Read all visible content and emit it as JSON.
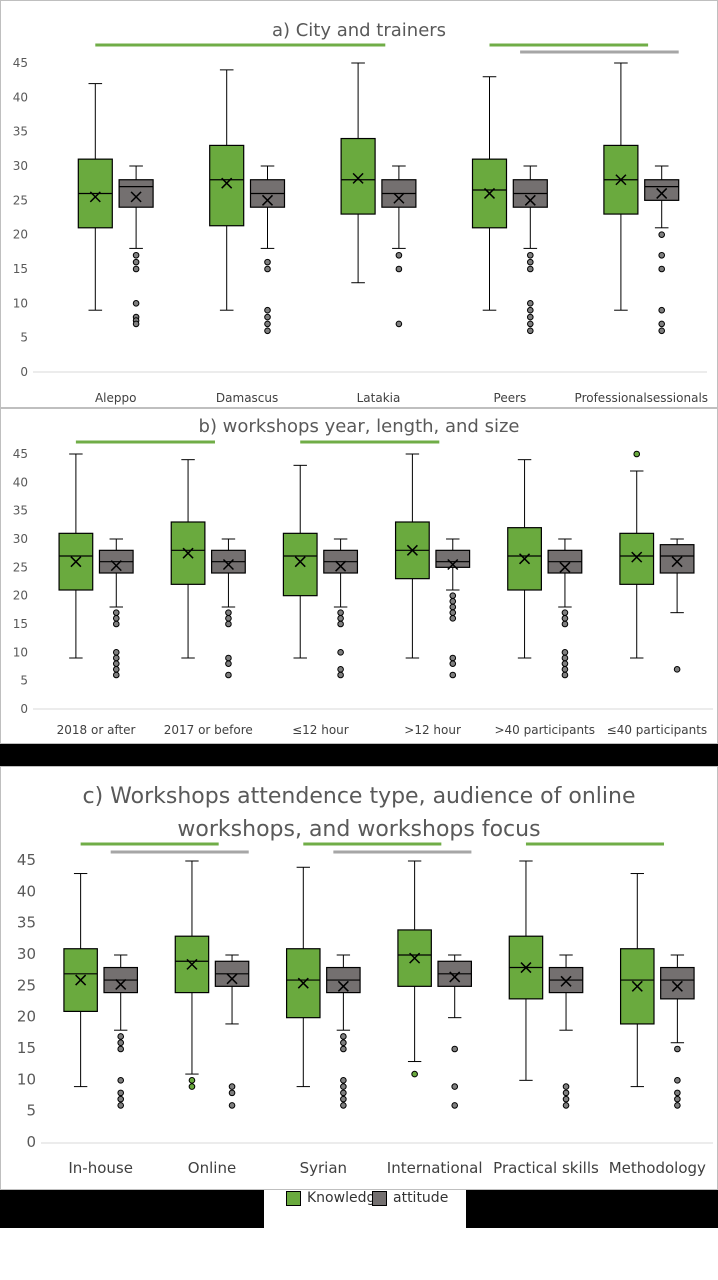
{
  "colors": {
    "knowledge": "#6aaa3e",
    "attitude": "#747070",
    "green_bar": "#70ad47",
    "grey_bar": "#a6a6a6",
    "outlier": "#7f7f7f",
    "knowledge_outlier": "#6aaa3e"
  },
  "legend": {
    "knowledge_label": "Knowledge",
    "attitude_label": "attitude"
  },
  "chart_data": [
    {
      "id": "panel-a",
      "type": "box",
      "title": "a) City and trainers",
      "yticks": [
        0,
        5,
        10,
        15,
        20,
        25,
        30,
        35,
        40,
        45
      ],
      "ylim": [
        0,
        45
      ],
      "grid": false,
      "categories": [
        "Aleppo",
        "Damascus",
        "Latakia",
        "Peers",
        "Professionalsessionals"
      ],
      "series": [
        {
          "name": "Knowledge",
          "boxes": [
            {
              "min": 9,
              "q1": 21,
              "median": 26,
              "q3": 31,
              "max": 42,
              "mean": 25.5,
              "outliers": []
            },
            {
              "min": 9,
              "q1": 21.3,
              "median": 28,
              "q3": 33,
              "max": 44,
              "mean": 27.5,
              "outliers": []
            },
            {
              "min": 13,
              "q1": 23,
              "median": 28,
              "q3": 34,
              "max": 45,
              "mean": 28.2,
              "outliers": []
            },
            {
              "min": 9,
              "q1": 21,
              "median": 26.5,
              "q3": 31,
              "max": 43,
              "mean": 26,
              "outliers": []
            },
            {
              "min": 9,
              "q1": 23,
              "median": 28,
              "q3": 33,
              "max": 45,
              "mean": 28,
              "outliers": []
            }
          ]
        },
        {
          "name": "attitude",
          "boxes": [
            {
              "min": 18,
              "q1": 24,
              "median": 27,
              "q3": 28,
              "max": 30,
              "mean": 25.5,
              "outliers": [
                17,
                16,
                15,
                10,
                8,
                7.5,
                7
              ]
            },
            {
              "min": 18,
              "q1": 24,
              "median": 26,
              "q3": 28,
              "max": 30,
              "mean": 25,
              "outliers": [
                16,
                15,
                9,
                8,
                7,
                6
              ]
            },
            {
              "min": 18,
              "q1": 24,
              "median": 26,
              "q3": 28,
              "max": 30,
              "mean": 25.3,
              "outliers": [
                17,
                15,
                7
              ]
            },
            {
              "min": 18,
              "q1": 24,
              "median": 26,
              "q3": 28,
              "max": 30,
              "mean": 25,
              "outliers": [
                17,
                16,
                15,
                10,
                9,
                8,
                7,
                6
              ]
            },
            {
              "min": 21,
              "q1": 25,
              "median": 27,
              "q3": 28,
              "max": 30,
              "mean": 26,
              "outliers": [
                20,
                17,
                15,
                9,
                7,
                6
              ]
            }
          ]
        }
      ],
      "significance_bars": [
        {
          "color": "green",
          "from": 0,
          "to": 2
        },
        {
          "color": "green",
          "from": 3,
          "to": 4
        },
        {
          "color": "grey",
          "from": 3,
          "to": 4
        }
      ]
    },
    {
      "id": "panel-b",
      "type": "box",
      "title": "b) workshops year, length, and size",
      "yticks": [
        0,
        5,
        10,
        15,
        20,
        25,
        30,
        35,
        40,
        45
      ],
      "ylim": [
        0,
        45
      ],
      "grid": false,
      "categories": [
        "2018 or after",
        "2017 or before",
        "≤12 hour",
        ">12 hour",
        ">40 participants",
        "≤40 participants"
      ],
      "series": [
        {
          "name": "Knowledge",
          "boxes": [
            {
              "min": 9,
              "q1": 21,
              "median": 27,
              "q3": 31,
              "max": 45,
              "mean": 26,
              "outliers": []
            },
            {
              "min": 9,
              "q1": 22,
              "median": 28,
              "q3": 33,
              "max": 44,
              "mean": 27.5,
              "outliers": []
            },
            {
              "min": 9,
              "q1": 20,
              "median": 27,
              "q3": 31,
              "max": 43,
              "mean": 26,
              "outliers": []
            },
            {
              "min": 9,
              "q1": 23,
              "median": 28,
              "q3": 33,
              "max": 45,
              "mean": 28,
              "outliers": []
            },
            {
              "min": 9,
              "q1": 21,
              "median": 27,
              "q3": 32,
              "max": 44,
              "mean": 26.5,
              "outliers": []
            },
            {
              "min": 9,
              "q1": 22,
              "median": 27,
              "q3": 31,
              "max": 42,
              "mean": 26.8,
              "outliers": [
                45
              ]
            }
          ]
        },
        {
          "name": "attitude",
          "boxes": [
            {
              "min": 18,
              "q1": 24,
              "median": 26,
              "q3": 28,
              "max": 30,
              "mean": 25.3,
              "outliers": [
                17,
                16,
                15,
                10,
                9,
                8,
                7,
                6
              ]
            },
            {
              "min": 18,
              "q1": 24,
              "median": 26,
              "q3": 28,
              "max": 30,
              "mean": 25.5,
              "outliers": [
                17,
                16,
                15,
                9,
                8,
                6
              ]
            },
            {
              "min": 18,
              "q1": 24,
              "median": 26,
              "q3": 28,
              "max": 30,
              "mean": 25.2,
              "outliers": [
                17,
                16,
                15,
                10,
                7,
                6
              ]
            },
            {
              "min": 21,
              "q1": 25,
              "median": 26,
              "q3": 28,
              "max": 30,
              "mean": 25.5,
              "outliers": [
                20,
                19,
                18,
                17,
                16,
                9,
                8,
                6
              ]
            },
            {
              "min": 18,
              "q1": 24,
              "median": 26,
              "q3": 28,
              "max": 30,
              "mean": 25,
              "outliers": [
                17,
                16,
                15,
                10,
                9,
                8,
                7,
                6
              ]
            },
            {
              "min": 17,
              "q1": 24,
              "median": 27,
              "q3": 29,
              "max": 30,
              "mean": 26,
              "outliers": [
                7
              ]
            }
          ]
        }
      ],
      "significance_bars": [
        {
          "color": "green",
          "from": 0,
          "to": 1
        },
        {
          "color": "green",
          "from": 2,
          "to": 3
        }
      ]
    },
    {
      "id": "panel-c",
      "type": "box",
      "title_lines": [
        "c) Workshops attendence type, audience of online",
        "workshops, and workshops focus"
      ],
      "yticks": [
        0,
        5,
        10,
        15,
        20,
        25,
        30,
        35,
        40,
        45
      ],
      "ylim": [
        0,
        45
      ],
      "grid": false,
      "categories": [
        "In-house",
        "Online",
        "Syrian",
        "International",
        "Practical skills",
        "Methodology"
      ],
      "series": [
        {
          "name": "Knowledge",
          "boxes": [
            {
              "min": 9,
              "q1": 21,
              "median": 27,
              "q3": 31,
              "max": 43,
              "mean": 26,
              "outliers": []
            },
            {
              "min": 11,
              "q1": 24,
              "median": 29,
              "q3": 33,
              "max": 45,
              "mean": 28.5,
              "outliers": [
                10,
                9
              ]
            },
            {
              "min": 9,
              "q1": 20,
              "median": 26,
              "q3": 31,
              "max": 44,
              "mean": 25.5,
              "outliers": []
            },
            {
              "min": 13,
              "q1": 25,
              "median": 30,
              "q3": 34,
              "max": 45,
              "mean": 29.5,
              "outliers": [
                11
              ]
            },
            {
              "min": 10,
              "q1": 23,
              "median": 28,
              "q3": 33,
              "max": 45,
              "mean": 28,
              "outliers": []
            },
            {
              "min": 9,
              "q1": 19,
              "median": 26,
              "q3": 31,
              "max": 43,
              "mean": 25,
              "outliers": []
            }
          ]
        },
        {
          "name": "attitude",
          "boxes": [
            {
              "min": 18,
              "q1": 24,
              "median": 26,
              "q3": 28,
              "max": 30,
              "mean": 25.3,
              "outliers": [
                17,
                16,
                15,
                10,
                8,
                7,
                6
              ]
            },
            {
              "min": 19,
              "q1": 25,
              "median": 27,
              "q3": 29,
              "max": 30,
              "mean": 26.2,
              "outliers": [
                9,
                8,
                6
              ]
            },
            {
              "min": 18,
              "q1": 24,
              "median": 26,
              "q3": 28,
              "max": 30,
              "mean": 25,
              "outliers": [
                17,
                16,
                15,
                10,
                9,
                8,
                7,
                6
              ]
            },
            {
              "min": 20,
              "q1": 25,
              "median": 27,
              "q3": 29,
              "max": 30,
              "mean": 26.5,
              "outliers": [
                15,
                9,
                6
              ]
            },
            {
              "min": 18,
              "q1": 24,
              "median": 26,
              "q3": 28,
              "max": 30,
              "mean": 25.8,
              "outliers": [
                9,
                8,
                7,
                6
              ]
            },
            {
              "min": 16,
              "q1": 23,
              "median": 26,
              "q3": 28,
              "max": 30,
              "mean": 25,
              "outliers": [
                15,
                10,
                8,
                7,
                6
              ]
            }
          ]
        }
      ],
      "significance_bars": [
        {
          "color": "green",
          "from": 0,
          "to": 1
        },
        {
          "color": "grey",
          "from": 0,
          "to": 1
        },
        {
          "color": "green",
          "from": 2,
          "to": 3
        },
        {
          "color": "grey",
          "from": 2,
          "to": 3
        },
        {
          "color": "green",
          "from": 4,
          "to": 5
        }
      ]
    }
  ]
}
